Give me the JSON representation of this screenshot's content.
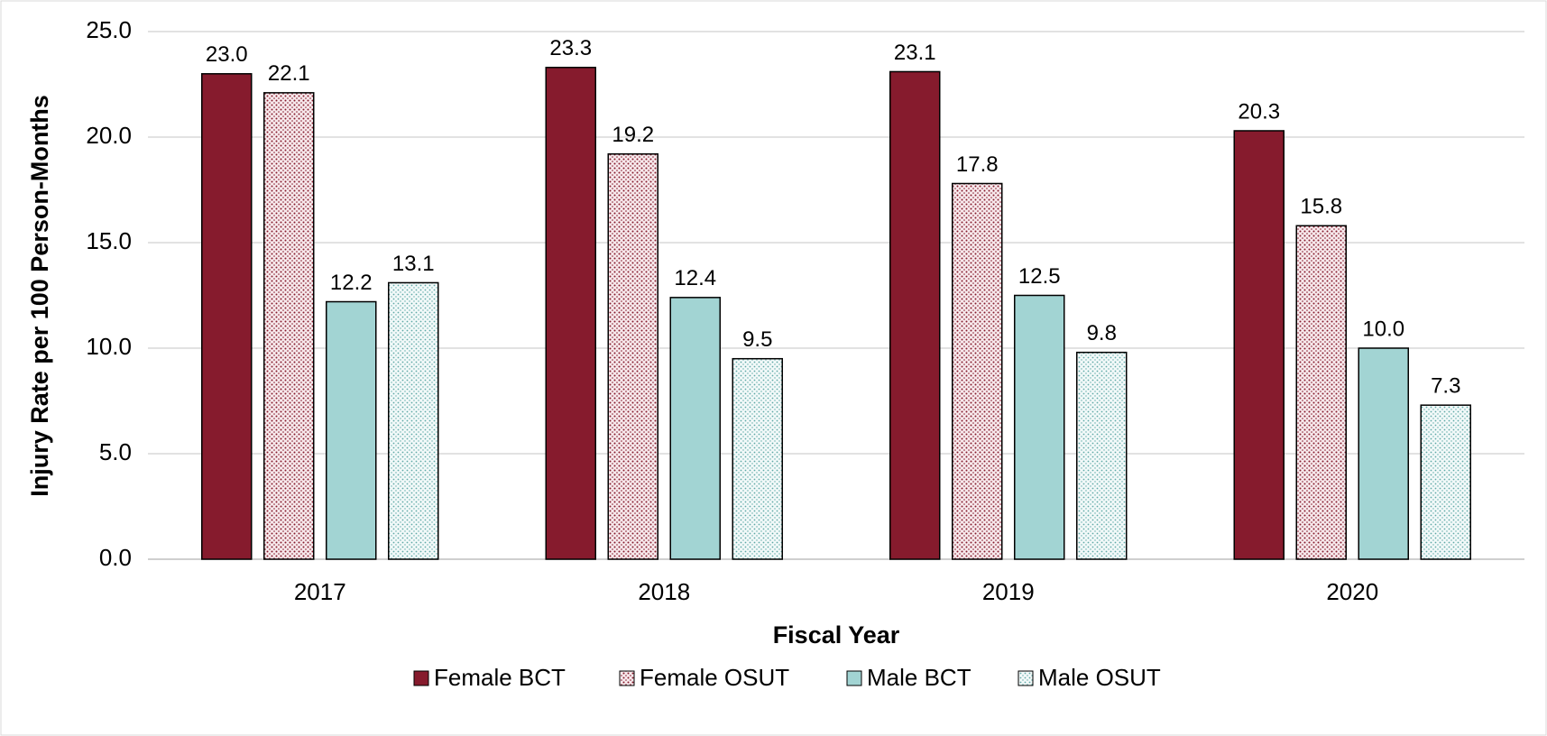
{
  "chart_data": {
    "type": "bar",
    "xlabel": "Fiscal Year",
    "ylabel": "Injury Rate per 100 Person-Months",
    "categories": [
      "2017",
      "2018",
      "2019",
      "2020"
    ],
    "series": [
      {
        "name": "Female BCT",
        "color": "#861b2d",
        "pattern": "solid",
        "values": [
          23.0,
          23.3,
          23.1,
          20.3
        ],
        "value_labels": [
          "23.0",
          "23.3",
          "23.1",
          "20.3"
        ]
      },
      {
        "name": "Female OSUT",
        "color": "#861b2d",
        "pattern": "dots",
        "values": [
          22.1,
          19.2,
          17.8,
          15.8
        ],
        "value_labels": [
          "22.1",
          "19.2",
          "17.8",
          "15.8"
        ]
      },
      {
        "name": "Male BCT",
        "color": "#a2d4d3",
        "pattern": "solid",
        "values": [
          12.2,
          12.4,
          12.5,
          10.0
        ],
        "value_labels": [
          "12.2",
          "12.4",
          "12.5",
          "10.0"
        ]
      },
      {
        "name": "Male OSUT",
        "color": "#5fa9a7",
        "pattern": "dots",
        "values": [
          13.1,
          9.5,
          9.8,
          7.3
        ],
        "value_labels": [
          "13.1",
          "9.5",
          "9.8",
          "7.3"
        ]
      }
    ],
    "ylim": [
      0,
      25
    ],
    "yticks": [
      {
        "value": 0,
        "label": "0.0"
      },
      {
        "value": 5,
        "label": "5.0"
      },
      {
        "value": 10,
        "label": "10.0"
      },
      {
        "value": 15,
        "label": "15.0"
      },
      {
        "value": 20,
        "label": "20.0"
      },
      {
        "value": 25,
        "label": "25.0"
      }
    ],
    "grid": true,
    "legend": "bottom"
  }
}
